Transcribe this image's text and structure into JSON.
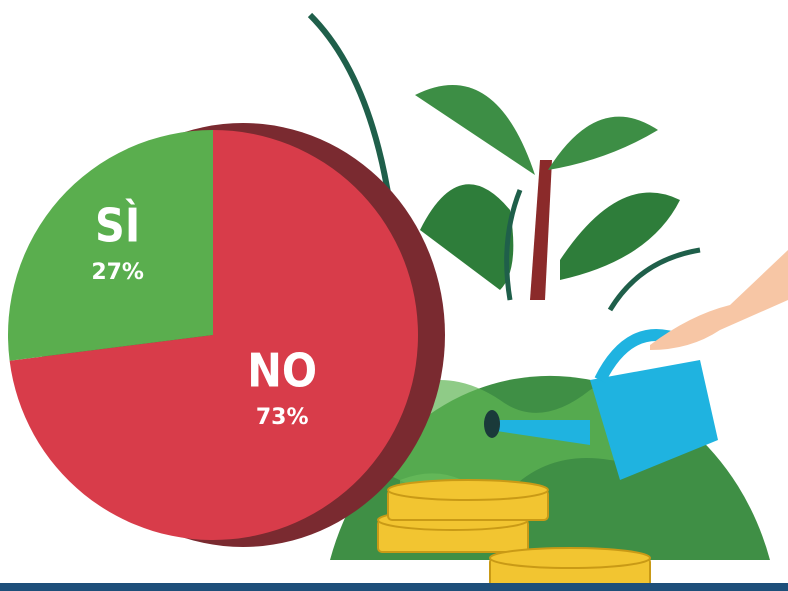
{
  "chart_data": {
    "type": "pie",
    "categories": [
      "SÌ",
      "NO"
    ],
    "values": [
      27,
      73
    ],
    "value_labels": [
      "27%",
      "73%"
    ],
    "colors": [
      "#5aae4e",
      "#d83c4a"
    ]
  }
}
